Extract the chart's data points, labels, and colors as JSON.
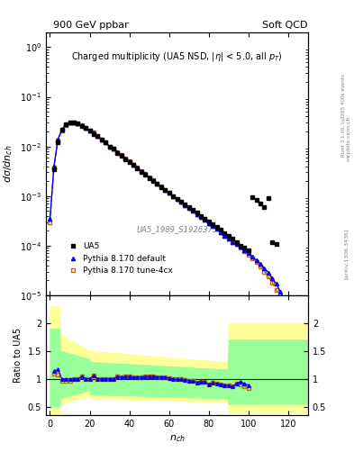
{
  "title_left": "900 GeV ppbar",
  "title_right": "Soft QCD",
  "plot_title": "Charged multiplicity (UA5 NSD, |\\eta| < 5.0, all p_{T})",
  "ylabel_main": "d\\sigma/dn_{ch}",
  "ylabel_ratio": "Ratio to UA5",
  "xlabel": "n_{ch}",
  "watermark": "UA5_1989_S1926373",
  "right_label": "Rivet 3.1.10, \\u2265 400k events",
  "arxiv_label": "[arXiv:1306.3436]",
  "mcplots_label": "mcplots.cern.ch",
  "ylim_main": [
    1e-05,
    2.0
  ],
  "ylim_ratio": [
    0.35,
    2.5
  ],
  "ratio_yticks": [
    0.5,
    1.0,
    1.5,
    2.0
  ],
  "background_color": "#ffffff",
  "ua5_color": "#000000",
  "pythia_default_color": "#0000ff",
  "pythia_4cx_color": "#cc6600",
  "yellow_band_color": "#ffff99",
  "green_band_color": "#99ff99",
  "ua5_nch": [
    2,
    4,
    6,
    8,
    10,
    12,
    14,
    16,
    18,
    20,
    22,
    24,
    26,
    28,
    30,
    32,
    34,
    36,
    38,
    40,
    42,
    44,
    46,
    48,
    50,
    52,
    54,
    56,
    58,
    60,
    62,
    64,
    66,
    68,
    70,
    72,
    74,
    76,
    78,
    80,
    82,
    84,
    86,
    88,
    90,
    92,
    94,
    96,
    98,
    100,
    102,
    104,
    106,
    108,
    110,
    112,
    114
  ],
  "ua5_dsigma": [
    0.0035,
    0.012,
    0.022,
    0.028,
    0.031,
    0.031,
    0.029,
    0.026,
    0.024,
    0.021,
    0.018,
    0.016,
    0.014,
    0.012,
    0.01,
    0.009,
    0.0075,
    0.0065,
    0.0056,
    0.0048,
    0.0042,
    0.0036,
    0.0031,
    0.0027,
    0.0023,
    0.002,
    0.00175,
    0.0015,
    0.0013,
    0.00115,
    0.001,
    0.00088,
    0.00077,
    0.00067,
    0.00059,
    0.00052,
    0.00046,
    0.0004,
    0.00035,
    0.00031,
    0.00027,
    0.00024,
    0.00021,
    0.00018,
    0.00016,
    0.00014,
    0.00012,
    0.0001,
    9e-05,
    8e-05,
    0.00095,
    0.00085,
    0.0007,
    0.0006,
    0.0009,
    0.00012,
    0.00011
  ],
  "pythia_default_nch": [
    0,
    2,
    4,
    6,
    8,
    10,
    12,
    14,
    16,
    18,
    20,
    22,
    24,
    26,
    28,
    30,
    32,
    34,
    36,
    38,
    40,
    42,
    44,
    46,
    48,
    50,
    52,
    54,
    56,
    58,
    60,
    62,
    64,
    66,
    68,
    70,
    72,
    74,
    76,
    78,
    80,
    82,
    84,
    86,
    88,
    90,
    92,
    94,
    96,
    98,
    100,
    102,
    104,
    106,
    108,
    110,
    112,
    114,
    116,
    118,
    120
  ],
  "pythia_default_dsigma": [
    0.00035,
    0.004,
    0.014,
    0.022,
    0.028,
    0.031,
    0.031,
    0.029,
    0.027,
    0.024,
    0.021,
    0.019,
    0.016,
    0.014,
    0.012,
    0.01,
    0.009,
    0.0078,
    0.0067,
    0.0058,
    0.005,
    0.0043,
    0.0037,
    0.0032,
    0.0028,
    0.0024,
    0.0021,
    0.0018,
    0.00155,
    0.00134,
    0.00116,
    0.001,
    0.00087,
    0.00076,
    0.00066,
    0.00057,
    0.0005,
    0.00043,
    0.00038,
    0.00033,
    0.00028,
    0.00025,
    0.00022,
    0.00019,
    0.00016,
    0.00014,
    0.00012,
    0.00011,
    9.5e-05,
    8.2e-05,
    7.1e-05,
    6e-05,
    5.1e-05,
    4.3e-05,
    3.5e-05,
    2.9e-05,
    2.2e-05,
    1.7e-05,
    1.2e-05,
    8e-06,
    5e-06
  ],
  "pythia_4cx_nch": [
    0,
    2,
    4,
    6,
    8,
    10,
    12,
    14,
    16,
    18,
    20,
    22,
    24,
    26,
    28,
    30,
    32,
    34,
    36,
    38,
    40,
    42,
    44,
    46,
    48,
    50,
    52,
    54,
    56,
    58,
    60,
    62,
    64,
    66,
    68,
    70,
    72,
    74,
    76,
    78,
    80,
    82,
    84,
    86,
    88,
    90,
    92,
    94,
    96,
    98,
    100,
    102,
    104,
    106,
    108,
    110,
    112,
    114,
    116,
    118,
    120
  ],
  "pythia_4cx_dsigma": [
    0.0003,
    0.0038,
    0.013,
    0.021,
    0.027,
    0.03,
    0.031,
    0.029,
    0.027,
    0.024,
    0.021,
    0.019,
    0.016,
    0.014,
    0.012,
    0.01,
    0.009,
    0.0078,
    0.0067,
    0.0058,
    0.005,
    0.0043,
    0.0037,
    0.0032,
    0.0028,
    0.0024,
    0.0021,
    0.0018,
    0.00155,
    0.00134,
    0.00116,
    0.001,
    0.00087,
    0.00076,
    0.00066,
    0.00057,
    0.0005,
    0.00043,
    0.00038,
    0.00033,
    0.00028,
    0.00025,
    0.00022,
    0.00019,
    0.00016,
    0.00014,
    0.00012,
    0.00011,
    9e-05,
    7.8e-05,
    6.6e-05,
    5.5e-05,
    4.6e-05,
    3.8e-05,
    3e-05,
    2.4e-05,
    1.8e-05,
    1.3e-05,
    9e-06,
    6e-06,
    4e-06
  ]
}
